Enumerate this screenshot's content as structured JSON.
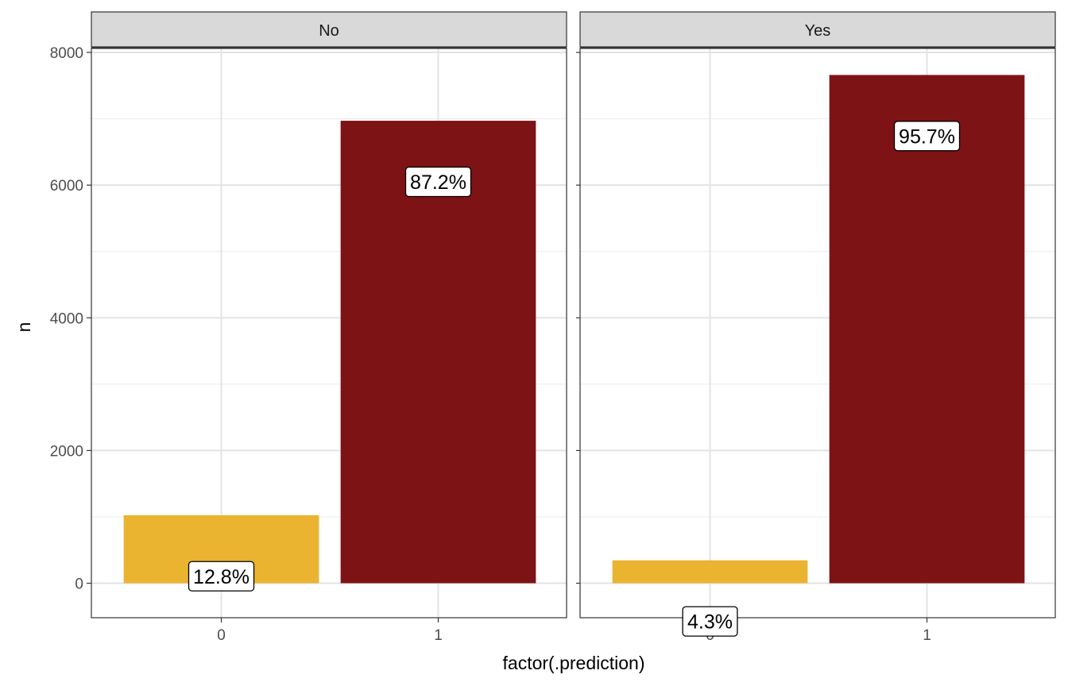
{
  "chart_data": {
    "type": "bar",
    "facets": [
      {
        "name": "No",
        "categories": [
          "0",
          "1"
        ],
        "values": [
          1025,
          6970
        ],
        "labels": [
          "12.8%",
          "87.2%"
        ]
      },
      {
        "name": "Yes",
        "categories": [
          "0",
          "1"
        ],
        "values": [
          345,
          7660
        ],
        "labels": [
          "4.3%",
          "95.7%"
        ]
      }
    ],
    "xlabel": "factor(.prediction)",
    "ylabel": "n",
    "ylim": [
      -520,
      8060
    ],
    "yticks": [
      0,
      2000,
      4000,
      6000,
      8000
    ],
    "grid": true,
    "fill_colors": {
      "0": "#EAB330",
      "1": "#7E1315"
    }
  }
}
